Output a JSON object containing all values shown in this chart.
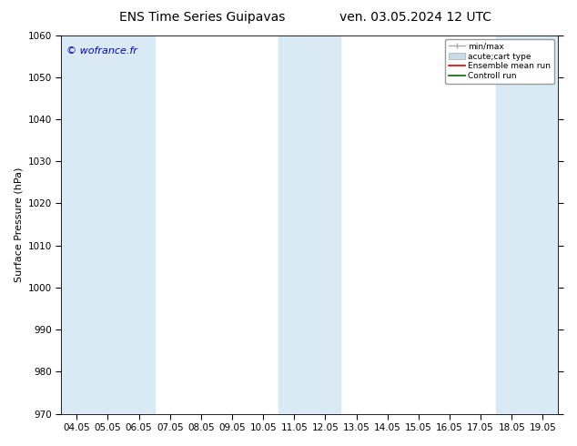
{
  "title_left": "ENS Time Series Guipavas",
  "title_right": "ven. 03.05.2024 12 UTC",
  "ylabel": "Surface Pressure (hPa)",
  "ylim": [
    970,
    1060
  ],
  "yticks": [
    970,
    980,
    990,
    1000,
    1010,
    1020,
    1030,
    1040,
    1050,
    1060
  ],
  "xtick_labels": [
    "04.05",
    "05.05",
    "06.05",
    "07.05",
    "08.05",
    "09.05",
    "10.05",
    "11.05",
    "12.05",
    "13.05",
    "14.05",
    "15.05",
    "16.05",
    "17.05",
    "18.05",
    "19.05"
  ],
  "copyright": "© wofrance.fr",
  "shade_color": "#daeaf5",
  "bg_color": "#ffffff",
  "legend_labels": [
    "min/max",
    "acute;cart type",
    "Ensemble mean run",
    "Controll run"
  ],
  "title_fontsize": 10,
  "ylabel_fontsize": 8,
  "tick_fontsize": 7.5,
  "copyright_fontsize": 8,
  "copyright_color": "#0000cc"
}
